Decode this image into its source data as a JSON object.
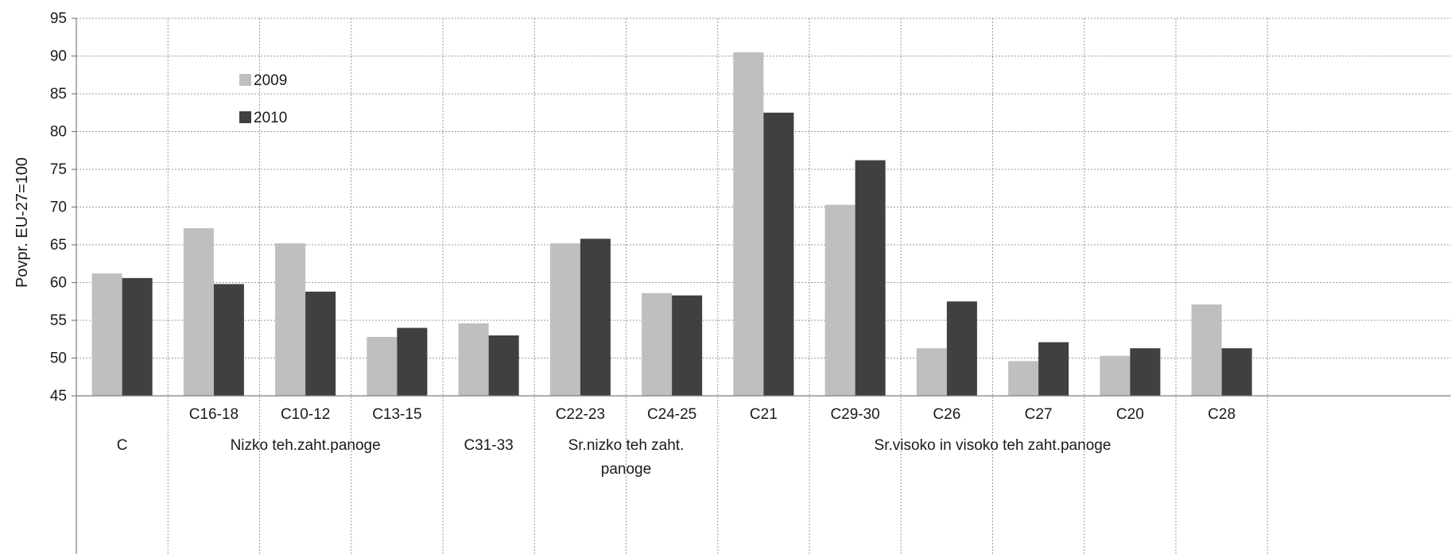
{
  "chart_data": {
    "type": "bar",
    "ylabel": "Povpr. EU-27=100",
    "ylim": [
      45,
      95
    ],
    "yticks": [
      45,
      50,
      55,
      60,
      65,
      70,
      75,
      80,
      85,
      90,
      95
    ],
    "grid": true,
    "legend": "top-left",
    "categories": [
      "",
      "C16-18",
      "C10-12",
      "C13-15",
      "",
      "C22-23",
      "C24-25",
      "C21",
      "C29-30",
      "C26",
      "C27",
      "C20",
      "C28"
    ],
    "groups": [
      {
        "label": "C",
        "span": [
          0,
          0
        ]
      },
      {
        "label": "Nizko teh.zaht.panoge",
        "span": [
          1,
          3
        ]
      },
      {
        "label": "C31-33",
        "span": [
          4,
          4
        ]
      },
      {
        "label": "Sr.nizko teh zaht.",
        "label2": "panoge",
        "span": [
          5,
          6
        ]
      },
      {
        "label": "Sr.visoko in visoko teh zaht.panoge",
        "span": [
          7,
          12
        ]
      }
    ],
    "series": [
      {
        "name": "2009",
        "color": "#bfbfbf",
        "values": [
          61.2,
          67.2,
          65.2,
          52.8,
          54.6,
          65.2,
          58.6,
          90.5,
          70.3,
          51.3,
          49.6,
          50.3,
          57.1
        ]
      },
      {
        "name": "2010",
        "color": "#404040",
        "values": [
          60.6,
          59.8,
          58.8,
          54.0,
          53.0,
          65.8,
          58.3,
          82.5,
          76.2,
          57.5,
          52.1,
          51.3,
          51.3
        ]
      }
    ]
  }
}
